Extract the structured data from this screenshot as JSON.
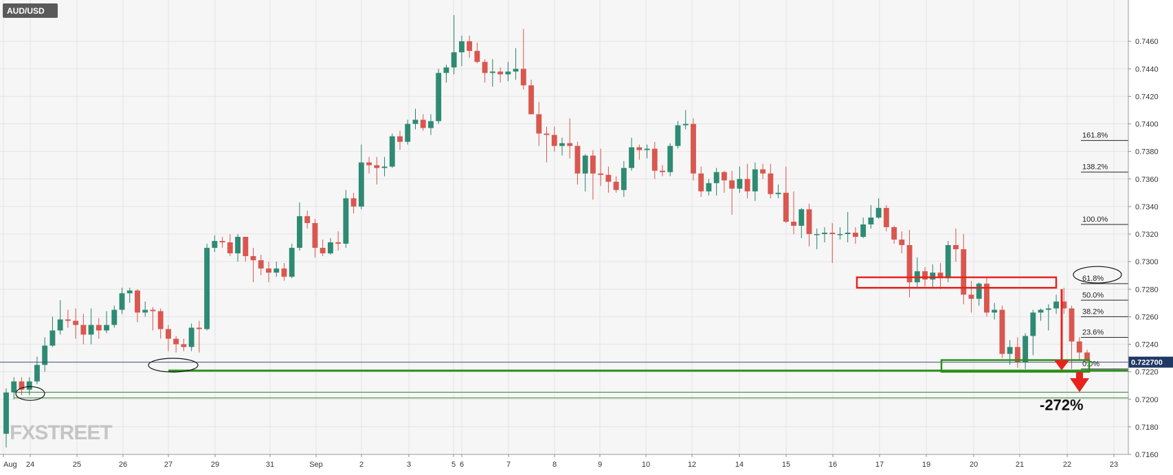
{
  "chart_data": {
    "type": "candlestick",
    "symbol": "AUD/USD",
    "watermark": "FXSTREET",
    "y_axis": {
      "ylim": [
        0.716,
        0.748
      ],
      "ticks": [
        "0.7160",
        "0.7180",
        "0.7200",
        "0.7220",
        "0.7240",
        "0.7260",
        "0.7280",
        "0.7300",
        "0.7320",
        "0.7340",
        "0.7360",
        "0.7380",
        "0.7400",
        "0.7420",
        "0.7440",
        "0.7460"
      ]
    },
    "x_axis": {
      "ticks": [
        "Aug",
        "24",
        "25",
        "26",
        "27",
        "29",
        "31",
        "Sep",
        "2",
        "3",
        "5",
        "6",
        "7",
        "8",
        "9",
        "10",
        "12",
        "14",
        "15",
        "16",
        "17",
        "19",
        "20",
        "21",
        "22",
        "23"
      ]
    },
    "current_price": "0.722700",
    "fib_levels": [
      {
        "label": "161.8%",
        "value": 0.7388
      },
      {
        "label": "138.2%",
        "value": 0.7365
      },
      {
        "label": "100.0%",
        "value": 0.7327
      },
      {
        "label": "61.8%",
        "value": 0.7284
      },
      {
        "label": "50.0%",
        "value": 0.7272
      },
      {
        "label": "38.2%",
        "value": 0.726
      },
      {
        "label": "23.6%",
        "value": 0.7245
      },
      {
        "label": "0.0%",
        "value": 0.7222
      }
    ],
    "annotation": "-272%",
    "candles": [
      [
        0.7175,
        0.7205,
        0.7165,
        0.7208
      ],
      [
        0.7205,
        0.7213,
        0.72,
        0.7216
      ],
      [
        0.7213,
        0.7207,
        0.7203,
        0.7216
      ],
      [
        0.7207,
        0.7213,
        0.7203,
        0.7216
      ],
      [
        0.7213,
        0.7225,
        0.7211,
        0.7231
      ],
      [
        0.7225,
        0.7239,
        0.722,
        0.7245
      ],
      [
        0.7239,
        0.725,
        0.7238,
        0.726
      ],
      [
        0.725,
        0.7258,
        0.7247,
        0.7272
      ],
      [
        0.7258,
        0.7257,
        0.7252,
        0.7265
      ],
      [
        0.7257,
        0.7254,
        0.7244,
        0.7266
      ],
      [
        0.7254,
        0.7247,
        0.724,
        0.7262
      ],
      [
        0.7247,
        0.7254,
        0.724,
        0.7266
      ],
      [
        0.7254,
        0.725,
        0.7244,
        0.7259
      ],
      [
        0.725,
        0.7254,
        0.7248,
        0.7264
      ],
      [
        0.7254,
        0.7265,
        0.7252,
        0.7268
      ],
      [
        0.7265,
        0.7277,
        0.7262,
        0.7281
      ],
      [
        0.7277,
        0.7279,
        0.727,
        0.7281
      ],
      [
        0.7279,
        0.7263,
        0.7256,
        0.728
      ],
      [
        0.7263,
        0.7265,
        0.726,
        0.7271
      ],
      [
        0.7265,
        0.7264,
        0.725,
        0.7267
      ],
      [
        0.7264,
        0.7251,
        0.7244,
        0.7266
      ],
      [
        0.7251,
        0.7244,
        0.7235,
        0.7254
      ],
      [
        0.7244,
        0.724,
        0.7234,
        0.7246
      ],
      [
        0.724,
        0.7238,
        0.7235,
        0.7244
      ],
      [
        0.7238,
        0.7252,
        0.7235,
        0.7255
      ],
      [
        0.7252,
        0.7251,
        0.7234,
        0.7257
      ],
      [
        0.7251,
        0.731,
        0.725,
        0.7313
      ],
      [
        0.731,
        0.7315,
        0.7307,
        0.7319
      ],
      [
        0.7315,
        0.7314,
        0.731,
        0.7318
      ],
      [
        0.7314,
        0.7306,
        0.7304,
        0.732
      ],
      [
        0.7306,
        0.7318,
        0.73,
        0.732
      ],
      [
        0.7318,
        0.7304,
        0.73,
        0.7318
      ],
      [
        0.7304,
        0.7301,
        0.7285,
        0.731
      ],
      [
        0.7301,
        0.7295,
        0.729,
        0.7305
      ],
      [
        0.7295,
        0.7292,
        0.7285,
        0.73
      ],
      [
        0.7292,
        0.7295,
        0.7289,
        0.73
      ],
      [
        0.7295,
        0.7289,
        0.7286,
        0.7299
      ],
      [
        0.7289,
        0.731,
        0.7288,
        0.7313
      ],
      [
        0.731,
        0.7333,
        0.7308,
        0.7343
      ],
      [
        0.7333,
        0.7328,
        0.7324,
        0.7337
      ],
      [
        0.7328,
        0.731,
        0.7303,
        0.7331
      ],
      [
        0.731,
        0.7306,
        0.7304,
        0.7316
      ],
      [
        0.7306,
        0.7314,
        0.7305,
        0.7317
      ],
      [
        0.7314,
        0.7313,
        0.7308,
        0.7322
      ],
      [
        0.7313,
        0.7346,
        0.731,
        0.7352
      ],
      [
        0.7346,
        0.734,
        0.7335,
        0.735
      ],
      [
        0.734,
        0.7372,
        0.7338,
        0.7385
      ],
      [
        0.7372,
        0.737,
        0.7364,
        0.7376
      ],
      [
        0.737,
        0.7368,
        0.7356,
        0.7376
      ],
      [
        0.7368,
        0.7369,
        0.7362,
        0.7376
      ],
      [
        0.7369,
        0.7391,
        0.7368,
        0.7393
      ],
      [
        0.7391,
        0.7387,
        0.7381,
        0.7395
      ],
      [
        0.7387,
        0.74,
        0.7385,
        0.7403
      ],
      [
        0.74,
        0.7403,
        0.7396,
        0.7411
      ],
      [
        0.7403,
        0.7397,
        0.7395,
        0.7407
      ],
      [
        0.7397,
        0.7402,
        0.7392,
        0.7407
      ],
      [
        0.7402,
        0.7437,
        0.74,
        0.744
      ],
      [
        0.7437,
        0.7441,
        0.743,
        0.7443
      ],
      [
        0.7441,
        0.7452,
        0.7436,
        0.7479
      ],
      [
        0.7452,
        0.746,
        0.7442,
        0.7464
      ],
      [
        0.746,
        0.7453,
        0.7448,
        0.7464
      ],
      [
        0.7453,
        0.7445,
        0.7444,
        0.7459
      ],
      [
        0.7445,
        0.7437,
        0.743,
        0.7447
      ],
      [
        0.7437,
        0.7438,
        0.7427,
        0.7447
      ],
      [
        0.7438,
        0.7436,
        0.743,
        0.7441
      ],
      [
        0.7436,
        0.7438,
        0.7431,
        0.7445
      ],
      [
        0.7438,
        0.744,
        0.7432,
        0.7455
      ],
      [
        0.744,
        0.7428,
        0.7425,
        0.7469
      ],
      [
        0.7428,
        0.7407,
        0.741,
        0.7432
      ],
      [
        0.7407,
        0.7393,
        0.7384,
        0.7416
      ],
      [
        0.7393,
        0.7392,
        0.7372,
        0.7398
      ],
      [
        0.7392,
        0.7384,
        0.738,
        0.7398
      ],
      [
        0.7384,
        0.7386,
        0.7377,
        0.739
      ],
      [
        0.7386,
        0.7384,
        0.7375,
        0.7404
      ],
      [
        0.7384,
        0.7364,
        0.7356,
        0.7387
      ],
      [
        0.7364,
        0.7377,
        0.7351,
        0.7378
      ],
      [
        0.7377,
        0.7364,
        0.7345,
        0.7381
      ],
      [
        0.7364,
        0.7363,
        0.7355,
        0.7382
      ],
      [
        0.7363,
        0.7358,
        0.735,
        0.7369
      ],
      [
        0.7358,
        0.7352,
        0.735,
        0.7362
      ],
      [
        0.7352,
        0.7368,
        0.7347,
        0.7373
      ],
      [
        0.7368,
        0.7383,
        0.7366,
        0.739
      ],
      [
        0.7383,
        0.7381,
        0.7374,
        0.7385
      ],
      [
        0.7381,
        0.7382,
        0.7375,
        0.7385
      ],
      [
        0.7382,
        0.7366,
        0.736,
        0.7387
      ],
      [
        0.7366,
        0.7365,
        0.7362,
        0.737
      ],
      [
        0.7365,
        0.7384,
        0.7362,
        0.7386
      ],
      [
        0.7384,
        0.7399,
        0.7382,
        0.7402
      ],
      [
        0.7399,
        0.74,
        0.7396,
        0.741
      ],
      [
        0.74,
        0.7364,
        0.7359,
        0.7404
      ],
      [
        0.7364,
        0.7351,
        0.7347,
        0.7369
      ],
      [
        0.7351,
        0.7357,
        0.7348,
        0.736
      ],
      [
        0.7357,
        0.7365,
        0.7348,
        0.7368
      ],
      [
        0.7365,
        0.7359,
        0.735,
        0.7366
      ],
      [
        0.7359,
        0.7353,
        0.7334,
        0.7366
      ],
      [
        0.7353,
        0.736,
        0.735,
        0.7369
      ],
      [
        0.736,
        0.7351,
        0.7346,
        0.7371
      ],
      [
        0.7351,
        0.7367,
        0.7344,
        0.7372
      ],
      [
        0.7367,
        0.7364,
        0.736,
        0.7371
      ],
      [
        0.7364,
        0.7349,
        0.7346,
        0.7371
      ],
      [
        0.7349,
        0.735,
        0.7346,
        0.7356
      ],
      [
        0.735,
        0.7329,
        0.7328,
        0.7369
      ],
      [
        0.7329,
        0.7326,
        0.732,
        0.7351
      ],
      [
        0.7326,
        0.7338,
        0.7317,
        0.7339
      ],
      [
        0.7338,
        0.732,
        0.7311,
        0.7342
      ],
      [
        0.732,
        0.732,
        0.7309,
        0.7324
      ],
      [
        0.732,
        0.7321,
        0.7314,
        0.7325
      ],
      [
        0.7321,
        0.732,
        0.7299,
        0.7328
      ],
      [
        0.732,
        0.732,
        0.7316,
        0.7325
      ],
      [
        0.732,
        0.7321,
        0.7314,
        0.7336
      ],
      [
        0.7321,
        0.7318,
        0.7313,
        0.7325
      ],
      [
        0.7318,
        0.7327,
        0.7317,
        0.7332
      ],
      [
        0.7327,
        0.7332,
        0.7324,
        0.7341
      ],
      [
        0.7332,
        0.7339,
        0.7331,
        0.7346
      ],
      [
        0.7339,
        0.7325,
        0.7322,
        0.7341
      ],
      [
        0.7325,
        0.7316,
        0.7313,
        0.7326
      ],
      [
        0.7316,
        0.7312,
        0.7306,
        0.7322
      ],
      [
        0.7312,
        0.7285,
        0.7274,
        0.7323
      ],
      [
        0.7285,
        0.7293,
        0.7281,
        0.7303
      ],
      [
        0.7293,
        0.7287,
        0.7282,
        0.7296
      ],
      [
        0.7287,
        0.7292,
        0.7281,
        0.7298
      ],
      [
        0.7292,
        0.7288,
        0.728,
        0.7299
      ],
      [
        0.7288,
        0.7312,
        0.7285,
        0.7315
      ],
      [
        0.7312,
        0.7309,
        0.73,
        0.7324
      ],
      [
        0.7309,
        0.7276,
        0.7269,
        0.732
      ],
      [
        0.7276,
        0.7273,
        0.7263,
        0.7286
      ],
      [
        0.7273,
        0.7284,
        0.7268,
        0.7285
      ],
      [
        0.7284,
        0.7263,
        0.726,
        0.7288
      ],
      [
        0.7263,
        0.7265,
        0.7258,
        0.727
      ],
      [
        0.7265,
        0.7233,
        0.723,
        0.7268
      ],
      [
        0.7233,
        0.7238,
        0.7225,
        0.7243
      ],
      [
        0.7238,
        0.7227,
        0.7223,
        0.7245
      ],
      [
        0.7227,
        0.7246,
        0.7222,
        0.7248
      ],
      [
        0.7246,
        0.7263,
        0.7232,
        0.7265
      ],
      [
        0.7263,
        0.7265,
        0.7257,
        0.7266
      ],
      [
        0.7265,
        0.7266,
        0.725,
        0.7269
      ],
      [
        0.7266,
        0.7271,
        0.7262,
        0.7276
      ],
      [
        0.7271,
        0.7266,
        0.7262,
        0.7281
      ],
      [
        0.7266,
        0.7242,
        0.7222,
        0.7268
      ],
      [
        0.7242,
        0.7234,
        0.7228,
        0.7245
      ],
      [
        0.7234,
        0.7228,
        0.7226,
        0.7236
      ]
    ]
  }
}
